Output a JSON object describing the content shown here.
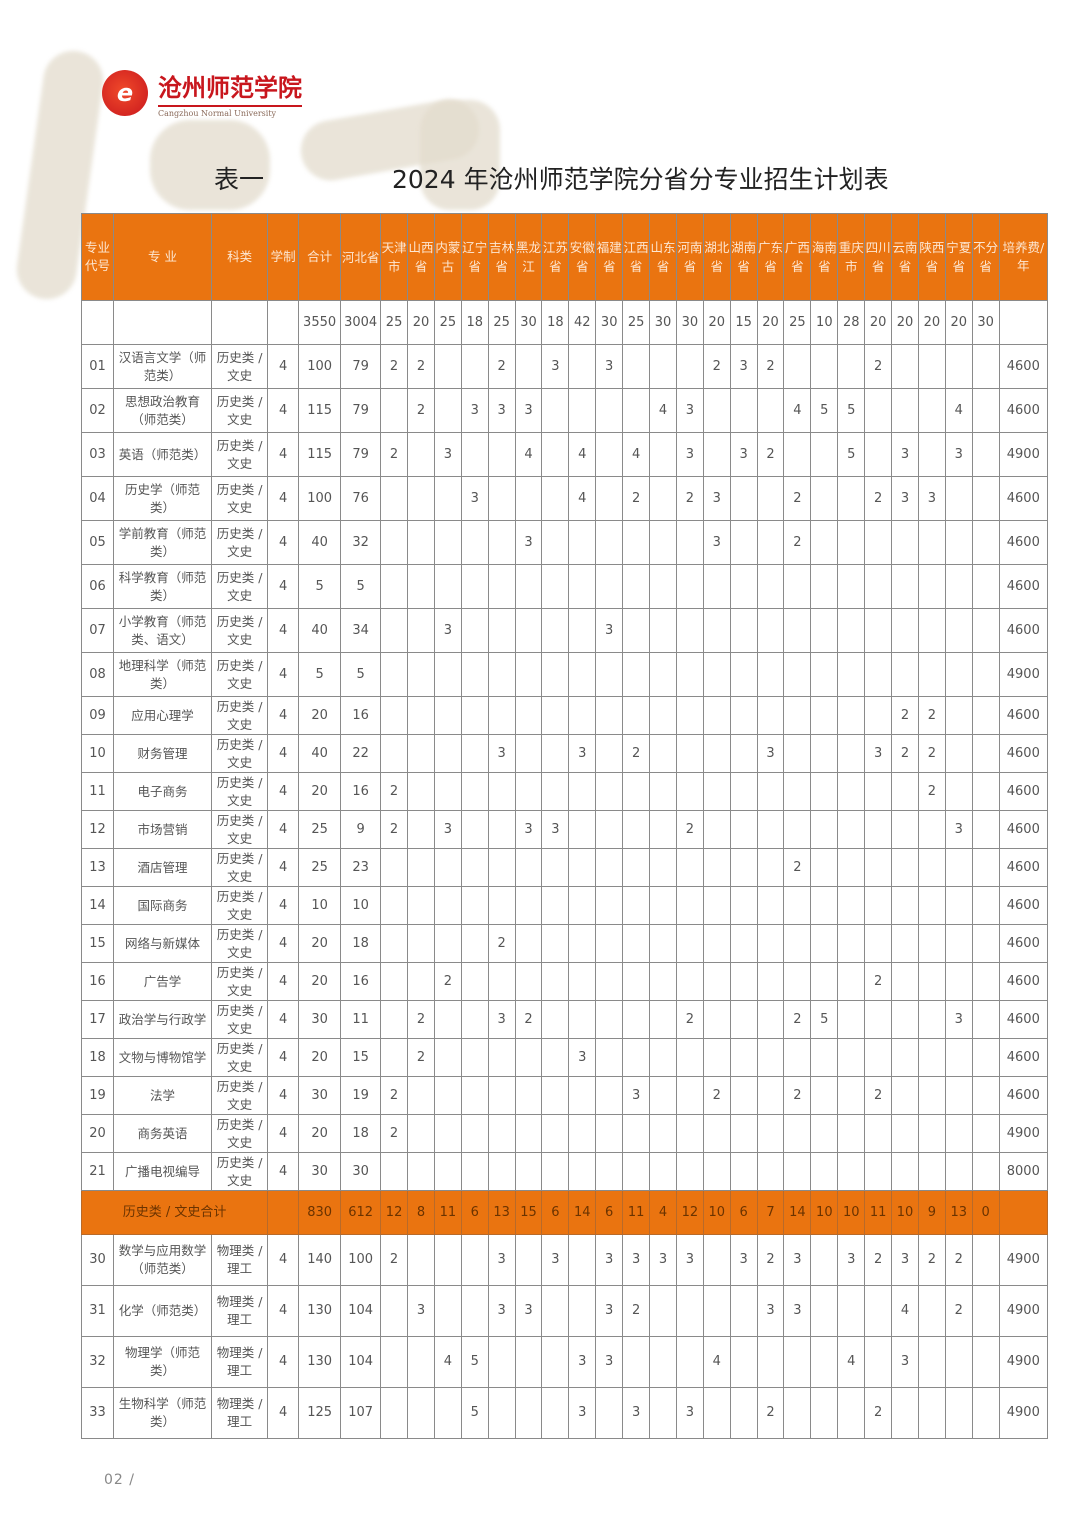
{
  "logo": {
    "cn": "沧州师范学院",
    "en": "Cangzhou Normal University",
    "icon": "university-seal-icon"
  },
  "title": {
    "label": "表一",
    "main": "2024 年沧州师范学院分省分专业招生计划表"
  },
  "colors": {
    "header_bg": "#ea7410",
    "accent": "#c8161d"
  },
  "headers": {
    "code": "专业代号",
    "major": "专 业",
    "category": "科类",
    "years": "学制",
    "total": "合计",
    "provinces": [
      "河北省",
      "天津市",
      "山西省",
      "内蒙古",
      "辽宁省",
      "吉林省",
      "黑龙江",
      "江苏省",
      "安徽省",
      "福建省",
      "江西省",
      "山东省",
      "河南省",
      "湖北省",
      "湖南省",
      "广东省",
      "广西省",
      "海南省",
      "重庆市",
      "四川省",
      "云南省",
      "陕西省",
      "宁夏省",
      "不分省"
    ],
    "fee": "培养费/年"
  },
  "grand_total": {
    "total": "3550",
    "provinces": [
      "3004",
      "25",
      "20",
      "25",
      "18",
      "25",
      "30",
      "18",
      "42",
      "30",
      "25",
      "30",
      "30",
      "20",
      "15",
      "20",
      "25",
      "10",
      "28",
      "20",
      "20",
      "20",
      "20",
      "30"
    ]
  },
  "rows_history": [
    {
      "code": "01",
      "name": "汉语言文学（师范类）",
      "category": "历史类 / 文史",
      "years": "4",
      "total": "100",
      "p": [
        "79",
        "2",
        "2",
        "",
        "",
        "2",
        "",
        "3",
        "",
        "3",
        "",
        "",
        "",
        "2",
        "3",
        "2",
        "",
        "",
        "",
        "2",
        "",
        "",
        "",
        ""
      ],
      "fee": "4600"
    },
    {
      "code": "02",
      "name": "思想政治教育（师范类）",
      "category": "历史类 / 文史",
      "years": "4",
      "total": "115",
      "p": [
        "79",
        "",
        "2",
        "",
        "3",
        "3",
        "3",
        "",
        "",
        "",
        "",
        "4",
        "3",
        "",
        "",
        "",
        "4",
        "5",
        "5",
        "",
        "",
        "",
        "4",
        ""
      ],
      "fee": "4600"
    },
    {
      "code": "03",
      "name": "英语（师范类）",
      "category": "历史类 / 文史",
      "years": "4",
      "total": "115",
      "p": [
        "79",
        "2",
        "",
        "3",
        "",
        "",
        "4",
        "",
        "4",
        "",
        "4",
        "",
        "3",
        "",
        "3",
        "2",
        "",
        "",
        "5",
        "",
        "3",
        "",
        "3",
        ""
      ],
      "fee": "4900"
    },
    {
      "code": "04",
      "name": "历史学（师范类）",
      "category": "历史类 / 文史",
      "years": "4",
      "total": "100",
      "p": [
        "76",
        "",
        "",
        "",
        "3",
        "",
        "",
        "",
        "4",
        "",
        "2",
        "",
        "2",
        "3",
        "",
        "",
        "2",
        "",
        "",
        "2",
        "3",
        "3",
        "",
        ""
      ],
      "fee": "4600"
    },
    {
      "code": "05",
      "name": "学前教育（师范类）",
      "category": "历史类 / 文史",
      "years": "4",
      "total": "40",
      "p": [
        "32",
        "",
        "",
        "",
        "",
        "",
        "3",
        "",
        "",
        "",
        "",
        "",
        "",
        "3",
        "",
        "",
        "2",
        "",
        "",
        "",
        "",
        "",
        "",
        ""
      ],
      "fee": "4600"
    },
    {
      "code": "06",
      "name": "科学教育（师范类）",
      "category": "历史类 / 文史",
      "years": "4",
      "total": "5",
      "p": [
        "5",
        "",
        "",
        "",
        "",
        "",
        "",
        "",
        "",
        "",
        "",
        "",
        "",
        "",
        "",
        "",
        "",
        "",
        "",
        "",
        "",
        "",
        "",
        ""
      ],
      "fee": "4600"
    },
    {
      "code": "07",
      "name": "小学教育（师范类、语文）",
      "category": "历史类 / 文史",
      "years": "4",
      "total": "40",
      "p": [
        "34",
        "",
        "",
        "3",
        "",
        "",
        "",
        "",
        "",
        "3",
        "",
        "",
        "",
        "",
        "",
        "",
        "",
        "",
        "",
        "",
        "",
        "",
        "",
        ""
      ],
      "fee": "4600"
    },
    {
      "code": "08",
      "name": "地理科学（师范类）",
      "category": "历史类 / 文史",
      "years": "4",
      "total": "5",
      "p": [
        "5",
        "",
        "",
        "",
        "",
        "",
        "",
        "",
        "",
        "",
        "",
        "",
        "",
        "",
        "",
        "",
        "",
        "",
        "",
        "",
        "",
        "",
        "",
        ""
      ],
      "fee": "4900"
    },
    {
      "code": "09",
      "name": "应用心理学",
      "category": "历史类 / 文史",
      "years": "4",
      "total": "20",
      "p": [
        "16",
        "",
        "",
        "",
        "",
        "",
        "",
        "",
        "",
        "",
        "",
        "",
        "",
        "",
        "",
        "",
        "",
        "",
        "",
        "",
        "2",
        "2",
        "",
        ""
      ],
      "fee": "4600"
    },
    {
      "code": "10",
      "name": "财务管理",
      "category": "历史类 / 文史",
      "years": "4",
      "total": "40",
      "p": [
        "22",
        "",
        "",
        "",
        "",
        "3",
        "",
        "",
        "3",
        "",
        "2",
        "",
        "",
        "",
        "",
        "3",
        "",
        "",
        "",
        "3",
        "2",
        "2",
        "",
        ""
      ],
      "fee": "4600"
    },
    {
      "code": "11",
      "name": "电子商务",
      "category": "历史类 / 文史",
      "years": "4",
      "total": "20",
      "p": [
        "16",
        "2",
        "",
        "",
        "",
        "",
        "",
        "",
        "",
        "",
        "",
        "",
        "",
        "",
        "",
        "",
        "",
        "",
        "",
        "",
        "",
        "2",
        "",
        ""
      ],
      "fee": "4600"
    },
    {
      "code": "12",
      "name": "市场营销",
      "category": "历史类 / 文史",
      "years": "4",
      "total": "25",
      "p": [
        "9",
        "2",
        "",
        "3",
        "",
        "",
        "3",
        "3",
        "",
        "",
        "",
        "",
        "2",
        "",
        "",
        "",
        "",
        "",
        "",
        "",
        "",
        "",
        "3",
        ""
      ],
      "fee": "4600"
    },
    {
      "code": "13",
      "name": "酒店管理",
      "category": "历史类 / 文史",
      "years": "4",
      "total": "25",
      "p": [
        "23",
        "",
        "",
        "",
        "",
        "",
        "",
        "",
        "",
        "",
        "",
        "",
        "",
        "",
        "",
        "",
        "2",
        "",
        "",
        "",
        "",
        "",
        "",
        ""
      ],
      "fee": "4600"
    },
    {
      "code": "14",
      "name": "国际商务",
      "category": "历史类 / 文史",
      "years": "4",
      "total": "10",
      "p": [
        "10",
        "",
        "",
        "",
        "",
        "",
        "",
        "",
        "",
        "",
        "",
        "",
        "",
        "",
        "",
        "",
        "",
        "",
        "",
        "",
        "",
        "",
        "",
        ""
      ],
      "fee": "4600"
    },
    {
      "code": "15",
      "name": "网络与新媒体",
      "category": "历史类 / 文史",
      "years": "4",
      "total": "20",
      "p": [
        "18",
        "",
        "",
        "",
        "",
        "2",
        "",
        "",
        "",
        "",
        "",
        "",
        "",
        "",
        "",
        "",
        "",
        "",
        "",
        "",
        "",
        "",
        "",
        ""
      ],
      "fee": "4600"
    },
    {
      "code": "16",
      "name": "广告学",
      "category": "历史类 / 文史",
      "years": "4",
      "total": "20",
      "p": [
        "16",
        "",
        "",
        "2",
        "",
        "",
        "",
        "",
        "",
        "",
        "",
        "",
        "",
        "",
        "",
        "",
        "",
        "",
        "",
        "2",
        "",
        "",
        "",
        ""
      ],
      "fee": "4600"
    },
    {
      "code": "17",
      "name": "政治学与行政学",
      "category": "历史类 / 文史",
      "years": "4",
      "total": "30",
      "p": [
        "11",
        "",
        "2",
        "",
        "",
        "3",
        "2",
        "",
        "",
        "",
        "",
        "",
        "2",
        "",
        "",
        "",
        "2",
        "5",
        "",
        "",
        "",
        "",
        "3",
        ""
      ],
      "fee": "4600"
    },
    {
      "code": "18",
      "name": "文物与博物馆学",
      "category": "历史类 / 文史",
      "years": "4",
      "total": "20",
      "p": [
        "15",
        "",
        "2",
        "",
        "",
        "",
        "",
        "",
        "3",
        "",
        "",
        "",
        "",
        "",
        "",
        "",
        "",
        "",
        "",
        "",
        "",
        "",
        "",
        ""
      ],
      "fee": "4600"
    },
    {
      "code": "19",
      "name": "法学",
      "category": "历史类 / 文史",
      "years": "4",
      "total": "30",
      "p": [
        "19",
        "2",
        "",
        "",
        "",
        "",
        "",
        "",
        "",
        "",
        "3",
        "",
        "",
        "2",
        "",
        "",
        "2",
        "",
        "",
        "2",
        "",
        "",
        "",
        ""
      ],
      "fee": "4600"
    },
    {
      "code": "20",
      "name": "商务英语",
      "category": "历史类 / 文史",
      "years": "4",
      "total": "20",
      "p": [
        "18",
        "2",
        "",
        "",
        "",
        "",
        "",
        "",
        "",
        "",
        "",
        "",
        "",
        "",
        "",
        "",
        "",
        "",
        "",
        "",
        "",
        "",
        "",
        ""
      ],
      "fee": "4900"
    },
    {
      "code": "21",
      "name": "广播电视编导",
      "category": "历史类 / 文史",
      "years": "4",
      "total": "30",
      "p": [
        "30",
        "",
        "",
        "",
        "",
        "",
        "",
        "",
        "",
        "",
        "",
        "",
        "",
        "",
        "",
        "",
        "",
        "",
        "",
        "",
        "",
        "",
        "",
        ""
      ],
      "fee": "8000"
    }
  ],
  "subtotal_history": {
    "label": "历史类 / 文史合计",
    "total": "830",
    "provinces": [
      "612",
      "12",
      "8",
      "11",
      "6",
      "13",
      "15",
      "6",
      "14",
      "6",
      "11",
      "4",
      "12",
      "10",
      "6",
      "7",
      "14",
      "10",
      "10",
      "11",
      "10",
      "9",
      "13",
      "0"
    ]
  },
  "rows_physics": [
    {
      "code": "30",
      "name": "数学与应用数学（师范类）",
      "category": "物理类 / 理工",
      "years": "4",
      "total": "140",
      "p": [
        "100",
        "2",
        "",
        "",
        "",
        "3",
        "",
        "3",
        "",
        "3",
        "3",
        "3",
        "3",
        "",
        "3",
        "2",
        "3",
        "",
        "3",
        "2",
        "3",
        "2",
        "2",
        ""
      ],
      "fee": "4900"
    },
    {
      "code": "31",
      "name": "化学（师范类）",
      "category": "物理类 / 理工",
      "years": "4",
      "total": "130",
      "p": [
        "104",
        "",
        "3",
        "",
        "",
        "3",
        "3",
        "",
        "",
        "3",
        "2",
        "",
        "",
        "",
        "",
        "3",
        "3",
        "",
        "",
        "",
        "4",
        "",
        "2",
        ""
      ],
      "fee": "4900"
    },
    {
      "code": "32",
      "name": "物理学（师范类）",
      "category": "物理类 / 理工",
      "years": "4",
      "total": "130",
      "p": [
        "104",
        "",
        "",
        "4",
        "5",
        "",
        "",
        "",
        "3",
        "3",
        "",
        "",
        "",
        "4",
        "",
        "",
        "",
        "",
        "4",
        "",
        "3",
        "",
        "",
        ""
      ],
      "fee": "4900"
    },
    {
      "code": "33",
      "name": "生物科学（师范类）",
      "category": "物理类 / 理工",
      "years": "4",
      "total": "125",
      "p": [
        "107",
        "",
        "",
        "",
        "5",
        "",
        "",
        "",
        "3",
        "",
        "3",
        "",
        "3",
        "",
        "",
        "2",
        "",
        "",
        "",
        "2",
        "",
        "",
        "",
        ""
      ],
      "fee": "4900"
    }
  ],
  "page_number": "02 /"
}
